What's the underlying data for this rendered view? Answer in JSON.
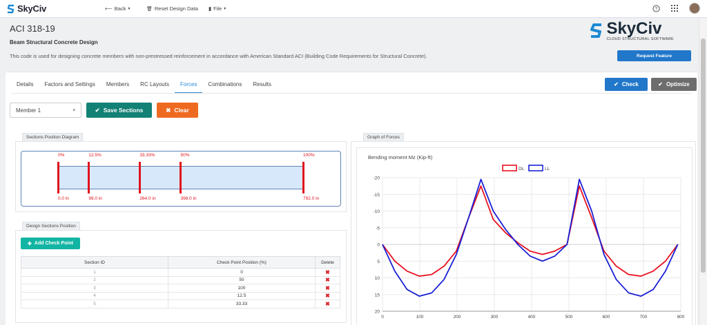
{
  "topbar": {
    "logo": "SkyCiv",
    "back": "Back",
    "reset": "Reset Design Data",
    "file": "File"
  },
  "header": {
    "title": "ACI 318-19",
    "subtitle": "Beam Structural Concrete Design",
    "description": "This code is used for designing concrete members with non-prestressed reinforcement in accordance with American Standard ACI (Building Code Requirements for Structural Concrete).",
    "brand": "SkyCiv",
    "brand_tag": "CLOUD STRUCTURAL SOFTWARE",
    "request_feature": "Request Feature"
  },
  "tabs": [
    "Details",
    "Factors and Settings",
    "Members",
    "RC Layouts",
    "Forces",
    "Combinations",
    "Results"
  ],
  "active_tab": "Forces",
  "actions": {
    "check": "Check",
    "optimize": "Optimize"
  },
  "member_select": {
    "value": "Member 1"
  },
  "buttons": {
    "save_sections": "Save Sections",
    "clear": "Clear",
    "add_check_point": "Add Check Point"
  },
  "sections_diagram": {
    "label": "Sections Position Diagram",
    "markers": [
      {
        "pct": "0%",
        "pos": "0.0 in",
        "fraction": 0
      },
      {
        "pct": "12.5%",
        "pos": "99.0 in",
        "fraction": 0.125
      },
      {
        "pct": "33.33%",
        "pos": "264.0 in",
        "fraction": 0.3333
      },
      {
        "pct": "50%",
        "pos": "396.0 in",
        "fraction": 0.5
      },
      {
        "pct": "100%",
        "pos": "792.0 in",
        "fraction": 1.0
      }
    ]
  },
  "design_sections": {
    "label": "Design Sections Position",
    "columns": [
      "Section ID",
      "Check Point Position (%)",
      "Delete"
    ],
    "rows": [
      {
        "id": "1",
        "position": "0"
      },
      {
        "id": "2",
        "position": "50"
      },
      {
        "id": "3",
        "position": "100"
      },
      {
        "id": "4",
        "position": "12.5"
      },
      {
        "id": "5",
        "position": "33.33"
      }
    ]
  },
  "graph": {
    "label": "Graph of Forces",
    "title": "Bending moment Mz (Kip-ft)"
  },
  "chart_data": {
    "type": "line",
    "title": "Bending moment Mz (Kip-ft)",
    "xlim": [
      0,
      800
    ],
    "ylim": [
      -20,
      20
    ],
    "y_inverted": true,
    "x_ticks": [
      0,
      100,
      200,
      300,
      400,
      500,
      600,
      700,
      800
    ],
    "y_ticks": [
      -20,
      -15,
      -10,
      -5,
      0,
      5,
      10,
      15,
      20
    ],
    "legend_position": "top-center",
    "grid": true,
    "series": [
      {
        "name": "DL",
        "color": "#e8101f",
        "x": [
          0,
          33,
          66,
          99,
          132,
          165,
          198,
          231,
          264,
          297,
          330,
          363,
          396,
          429,
          462,
          495,
          528,
          561,
          594,
          627,
          660,
          693,
          726,
          759,
          792
        ],
        "y": [
          0,
          5,
          8,
          9.5,
          9,
          6.5,
          2,
          -8,
          -17.5,
          -7.5,
          -3.5,
          -0.5,
          2,
          3,
          2,
          0,
          -17.5,
          -8,
          2,
          6.5,
          9,
          9.5,
          8,
          5,
          0
        ]
      },
      {
        "name": "LL",
        "color": "#1a20d6",
        "x": [
          0,
          33,
          66,
          99,
          132,
          165,
          198,
          231,
          264,
          297,
          330,
          363,
          396,
          429,
          462,
          495,
          528,
          561,
          594,
          627,
          660,
          693,
          726,
          759,
          792
        ],
        "y": [
          0,
          8,
          13.5,
          15.5,
          14.5,
          10.5,
          3,
          -8,
          -19.5,
          -10,
          -4.5,
          0,
          3.5,
          5,
          3.5,
          0,
          -19.5,
          -10,
          3,
          10.5,
          14.5,
          15.5,
          13.5,
          8,
          0
        ]
      }
    ]
  }
}
